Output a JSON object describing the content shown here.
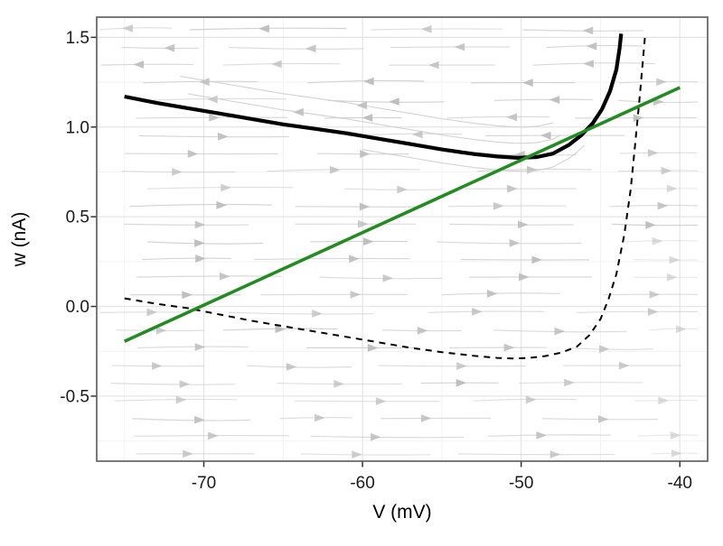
{
  "colors": {
    "solid_nullcline": "#000000",
    "dashed_nullcline": "#000000",
    "w_nullcline_green": "#228B22",
    "streamline": "#cdcdcd",
    "arrow": "#bdbdbd",
    "grid_major": "#e4e4e4",
    "grid_minor": "#f2f2f2",
    "panel_border": "#595959",
    "tick_mark": "#333333",
    "text": "#1a1a1a",
    "background": "#ffffff"
  },
  "chart_data": {
    "type": "line",
    "title": "",
    "description": "Phase plane of a neuron model: V-nullclines (black solid and black dashed) and w-nullcline (green) over a gray streamline vector field",
    "xlabel": "V (mV)",
    "ylabel": "w (nA)",
    "xlim": [
      -76.75,
      -38.25
    ],
    "ylim": [
      -0.8625,
      1.6125
    ],
    "x_major_ticks": [
      -70,
      -60,
      -50,
      -40
    ],
    "x_tick_labels": [
      "-70",
      "-60",
      "-50",
      "-40"
    ],
    "x_minor_ticks": [
      -75,
      -65,
      -55,
      -45
    ],
    "y_major_ticks": [
      1.5,
      1.0,
      0.5,
      0.0,
      -0.5
    ],
    "y_tick_labels": [
      "1.5",
      "1.0",
      "0.5",
      "0.0",
      "-0.5"
    ],
    "y_minor_ticks": [
      1.25,
      0.75,
      0.25,
      -0.25,
      -0.75
    ],
    "grid": true,
    "legend": false,
    "series": [
      {
        "name": "v-nullcline-solid",
        "style": "solid",
        "color_key": "solid_nullcline",
        "width": 4.2,
        "points": [
          [
            -75,
            1.17
          ],
          [
            -73,
            1.135
          ],
          [
            -71,
            1.105
          ],
          [
            -69,
            1.075
          ],
          [
            -67,
            1.045
          ],
          [
            -65,
            1.015
          ],
          [
            -63,
            0.99
          ],
          [
            -61,
            0.965
          ],
          [
            -59,
            0.935
          ],
          [
            -57,
            0.905
          ],
          [
            -55,
            0.875
          ],
          [
            -53,
            0.85
          ],
          [
            -51.5,
            0.836
          ],
          [
            -50.2,
            0.828
          ],
          [
            -49,
            0.833
          ],
          [
            -48,
            0.852
          ],
          [
            -47,
            0.9
          ],
          [
            -46.2,
            0.955
          ],
          [
            -45.5,
            1.02
          ],
          [
            -44.9,
            1.1
          ],
          [
            -44.4,
            1.2
          ],
          [
            -44.0,
            1.32
          ],
          [
            -43.8,
            1.44
          ],
          [
            -43.7,
            1.52
          ]
        ]
      },
      {
        "name": "v-nullcline-dashed",
        "style": "dashed",
        "color_key": "dashed_nullcline",
        "width": 2,
        "points": [
          [
            -75,
            0.045
          ],
          [
            -73,
            0.015
          ],
          [
            -71,
            -0.01
          ],
          [
            -69,
            -0.045
          ],
          [
            -67,
            -0.08
          ],
          [
            -65,
            -0.11
          ],
          [
            -63,
            -0.14
          ],
          [
            -61,
            -0.17
          ],
          [
            -59,
            -0.2
          ],
          [
            -57,
            -0.23
          ],
          [
            -55,
            -0.255
          ],
          [
            -53,
            -0.275
          ],
          [
            -51.5,
            -0.287
          ],
          [
            -50.5,
            -0.29
          ],
          [
            -49.5,
            -0.287
          ],
          [
            -48.5,
            -0.277
          ],
          [
            -47.5,
            -0.258
          ],
          [
            -46.5,
            -0.225
          ],
          [
            -45.7,
            -0.16
          ],
          [
            -45,
            -0.07
          ],
          [
            -44.5,
            0.04
          ],
          [
            -44,
            0.18
          ],
          [
            -43.5,
            0.4
          ],
          [
            -43.1,
            0.65
          ],
          [
            -42.8,
            0.92
          ],
          [
            -42.55,
            1.15
          ],
          [
            -42.35,
            1.35
          ],
          [
            -42.2,
            1.5
          ]
        ]
      },
      {
        "name": "w-nullcline-green",
        "style": "solid",
        "color_key": "w_nullcline_green",
        "width": 3.6,
        "points": [
          [
            -75,
            -0.195
          ],
          [
            -40,
            1.22
          ]
        ]
      }
    ],
    "vector_field": {
      "description": "streamlines, nearly horizontal; arrows point left above the solid black nullcline and right below/right of it",
      "row_spacing_px": 19.58,
      "rows": 25,
      "direction_rule": "left if w > solid nullcline, else right"
    }
  }
}
